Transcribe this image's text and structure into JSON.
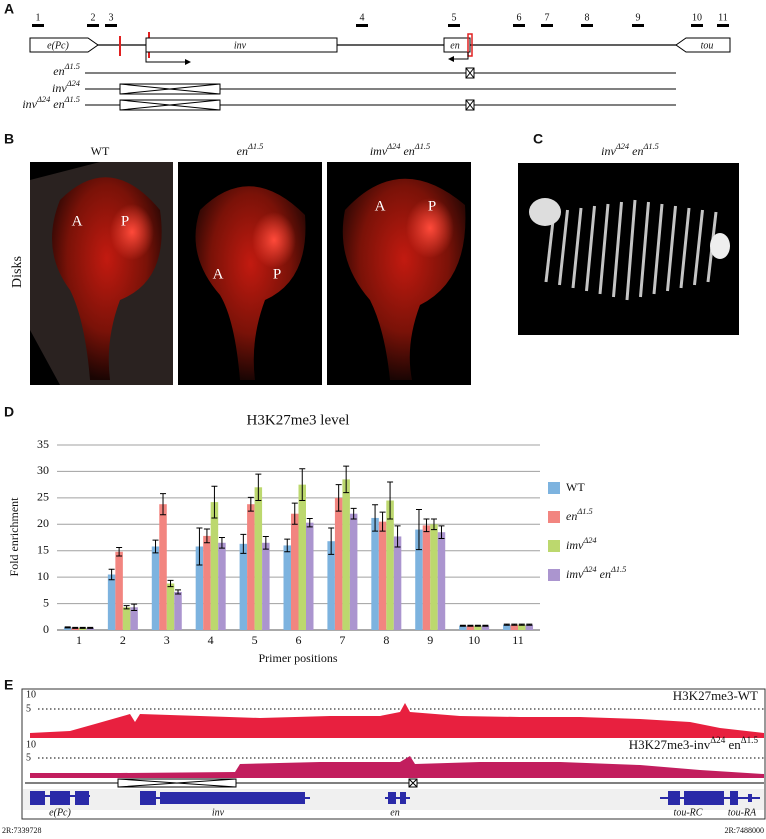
{
  "panel_labels": [
    "A",
    "B",
    "C",
    "D",
    "E"
  ],
  "panel_a": {
    "primers": [
      "1",
      "2",
      "3",
      "4",
      "5",
      "6",
      "7",
      "8",
      "9",
      "10",
      "11"
    ],
    "genes": [
      "e(Pc)",
      "inv",
      "en",
      "tou"
    ],
    "alleles": [
      "enΔ1.5",
      "invΔ24",
      "invΔ24 enΔ1.5"
    ]
  },
  "panel_b": {
    "columns": [
      "WT",
      "enΔ1.5",
      "imvΔ24 enΔ1.5"
    ],
    "row_label": "Disks",
    "region_labels": [
      "A",
      "P"
    ]
  },
  "panel_c": {
    "title": "invΔ24 enΔ1.5"
  },
  "chart_data": {
    "type": "bar",
    "title": "H3K27me3 level",
    "y_label": "Fold enrichment",
    "x_label": "Primer positions",
    "categories": [
      "1",
      "2",
      "3",
      "4",
      "5",
      "6",
      "7",
      "8",
      "9",
      "10",
      "11"
    ],
    "series": [
      {
        "name": "WT",
        "color": "#7db3df",
        "values": [
          0.5,
          10.5,
          15.8,
          15.8,
          16.3,
          16,
          16.8,
          21.2,
          19,
          0.8,
          1
        ],
        "errors": [
          0.1,
          1,
          1.2,
          3.5,
          1.8,
          1.2,
          2.5,
          2.5,
          3.8,
          0.1,
          0.1
        ]
      },
      {
        "name": "enΔ1.5",
        "color": "#f28580",
        "values": [
          0.4,
          14.8,
          23.8,
          17.8,
          23.8,
          22,
          25,
          20.5,
          19.8,
          0.8,
          1
        ],
        "errors": [
          0.1,
          0.8,
          2,
          1.3,
          1.3,
          2,
          2.5,
          1.8,
          1.2,
          0.1,
          0.1
        ]
      },
      {
        "name": "imvΔ24",
        "color": "#bcd86e",
        "values": [
          0.4,
          4.3,
          8.8,
          24.2,
          27,
          27.5,
          28.5,
          24.5,
          20,
          0.8,
          1
        ],
        "errors": [
          0.1,
          0.3,
          0.6,
          3,
          2.5,
          3,
          2.5,
          3.5,
          1,
          0.1,
          0.1
        ]
      },
      {
        "name": "imvΔ24 enΔ1.5",
        "color": "#ab95cf",
        "values": [
          0.4,
          4.3,
          7.2,
          16.5,
          16.5,
          20.3,
          22,
          17.7,
          18.5,
          0.8,
          1
        ],
        "errors": [
          0.1,
          0.6,
          0.4,
          1,
          1.2,
          0.8,
          1,
          2,
          1.2,
          0.1,
          0.1
        ]
      }
    ],
    "ylim": [
      0,
      35
    ],
    "yticks": [
      0,
      5,
      10,
      15,
      20,
      25,
      30,
      35
    ],
    "grid": true,
    "legend": "right"
  },
  "panel_e": {
    "tracks": [
      {
        "name": "H3K27me3-WT",
        "scale": [
          "10",
          "5"
        ]
      },
      {
        "name": "H3K27me3-invΔ24 enΔ1.5",
        "scale": [
          "10",
          "5"
        ]
      }
    ],
    "genes": [
      "e(Pc)",
      "inv",
      "en",
      "tou-RC",
      "tou-RA"
    ],
    "coordinates": [
      "2R:7339728",
      "2R:7488000"
    ]
  }
}
